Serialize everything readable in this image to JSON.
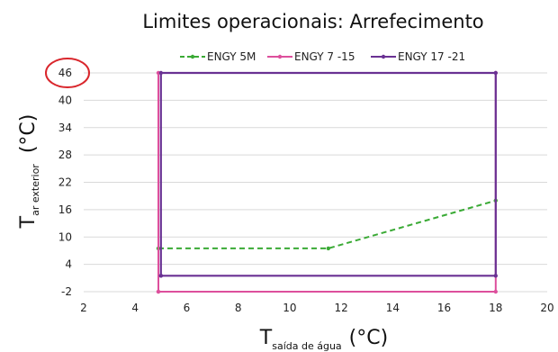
{
  "chart_data": {
    "type": "line",
    "title": "Limites operacionais: Arrefecimento",
    "xlabel": {
      "main": "T",
      "sub": "saída de água",
      "unit": "(°C)"
    },
    "ylabel": {
      "main": "T",
      "sub": "ar exterior",
      "unit": "(°C)"
    },
    "xlim": [
      2,
      20
    ],
    "ylim": [
      -2,
      46
    ],
    "xticks": [
      "2",
      "4",
      "6",
      "8",
      "10",
      "12",
      "14",
      "16",
      "18",
      "20"
    ],
    "yticks": [
      "-2",
      "4",
      "10",
      "16",
      "22",
      "28",
      "34",
      "40",
      "46"
    ],
    "grid": "horizontal",
    "legend_position": "top",
    "highlight": {
      "label": "46",
      "shape": "circle",
      "color": "#d9262c"
    },
    "series": [
      {
        "name": "ENGY 5M",
        "color": "#3aaa35",
        "style": "dashed",
        "x": [
          4.9,
          11.5,
          18
        ],
        "y": [
          7.5,
          7.5,
          18
        ]
      },
      {
        "name": "ENGY 7 -15",
        "color": "#dd4f9c",
        "style": "solid",
        "x": [
          4.9,
          4.9,
          18,
          18,
          4.9
        ],
        "y": [
          -2,
          46,
          46,
          -2,
          -2
        ]
      },
      {
        "name": "ENGY 17 -21",
        "color": "#6a3193",
        "style": "solid",
        "x": [
          5,
          5,
          18,
          18,
          5
        ],
        "y": [
          1.5,
          46,
          46,
          1.5,
          1.5
        ]
      }
    ]
  }
}
